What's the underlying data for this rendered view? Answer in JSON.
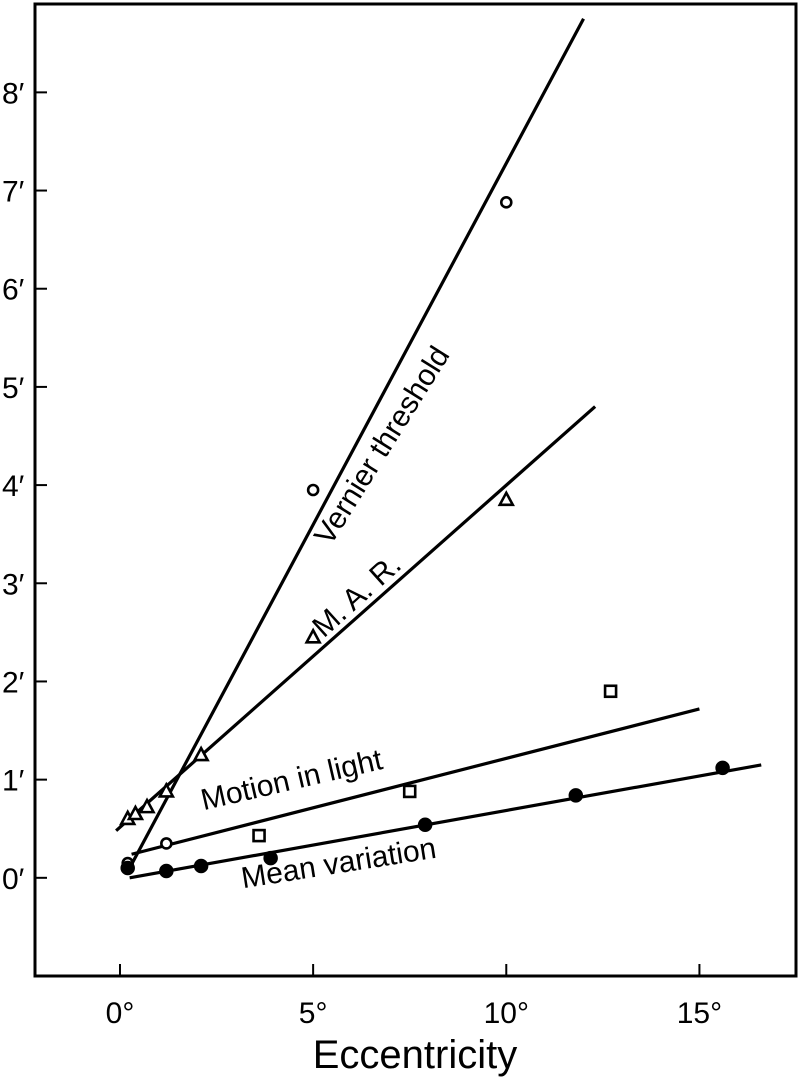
{
  "chart_data": {
    "type": "scatter",
    "xlabel": "Eccentricity",
    "ylabel": "",
    "xlim": [
      -2.2,
      17.5
    ],
    "ylim": [
      -1,
      8.9
    ],
    "grid": false,
    "x_ticks": [
      {
        "value": 0,
        "label": "0°"
      },
      {
        "value": 5,
        "label": "5°"
      },
      {
        "value": 10,
        "label": "10°"
      },
      {
        "value": 15,
        "label": "15°"
      }
    ],
    "y_ticks": [
      {
        "value": 0,
        "label": "0′"
      },
      {
        "value": 1,
        "label": "1′"
      },
      {
        "value": 2,
        "label": "2′"
      },
      {
        "value": 3,
        "label": "3′"
      },
      {
        "value": 4,
        "label": "4′"
      },
      {
        "value": 5,
        "label": "5′"
      },
      {
        "value": 6,
        "label": "6′"
      },
      {
        "value": 7,
        "label": "7′"
      },
      {
        "value": 8,
        "label": "8′"
      }
    ],
    "series": [
      {
        "name": "Vernier threshold",
        "marker": "circle-open",
        "points": [
          [
            0.2,
            0.15
          ],
          [
            1.2,
            0.35
          ],
          [
            5.0,
            3.95
          ],
          [
            10.0,
            6.88
          ]
        ],
        "fit": [
          [
            0.25,
            0.1
          ],
          [
            12.0,
            8.75
          ]
        ],
        "label_at": [
          7.0,
          4.35
        ],
        "label_angle": -58
      },
      {
        "name": "M. A. R.",
        "marker": "triangle-open",
        "points": [
          [
            0.2,
            0.6
          ],
          [
            0.4,
            0.65
          ],
          [
            0.7,
            0.72
          ],
          [
            1.2,
            0.88
          ],
          [
            2.1,
            1.25
          ],
          [
            5.0,
            2.45
          ],
          [
            10.0,
            3.85
          ]
        ],
        "fit": [
          [
            -0.1,
            0.48
          ],
          [
            12.3,
            4.8
          ]
        ],
        "label_at": [
          6.3,
          2.8
        ],
        "label_angle": -42
      },
      {
        "name": "Motion in light",
        "marker": "square-open",
        "points": [
          [
            3.6,
            0.43
          ],
          [
            7.5,
            0.88
          ],
          [
            12.7,
            1.9
          ]
        ],
        "fit": [
          [
            0.3,
            0.24
          ],
          [
            15.0,
            1.72
          ]
        ],
        "label_at": [
          4.5,
          0.9
        ],
        "label_angle": -13
      },
      {
        "name": "Mean variation",
        "marker": "circle-filled",
        "points": [
          [
            0.2,
            0.1
          ],
          [
            1.2,
            0.07
          ],
          [
            2.1,
            0.12
          ],
          [
            3.9,
            0.2
          ],
          [
            7.9,
            0.54
          ],
          [
            11.8,
            0.84
          ],
          [
            15.6,
            1.12
          ]
        ],
        "fit": [
          [
            0.25,
            0.0
          ],
          [
            16.6,
            1.15
          ]
        ],
        "label_at": [
          5.7,
          0.05
        ],
        "label_angle": -9
      }
    ]
  }
}
